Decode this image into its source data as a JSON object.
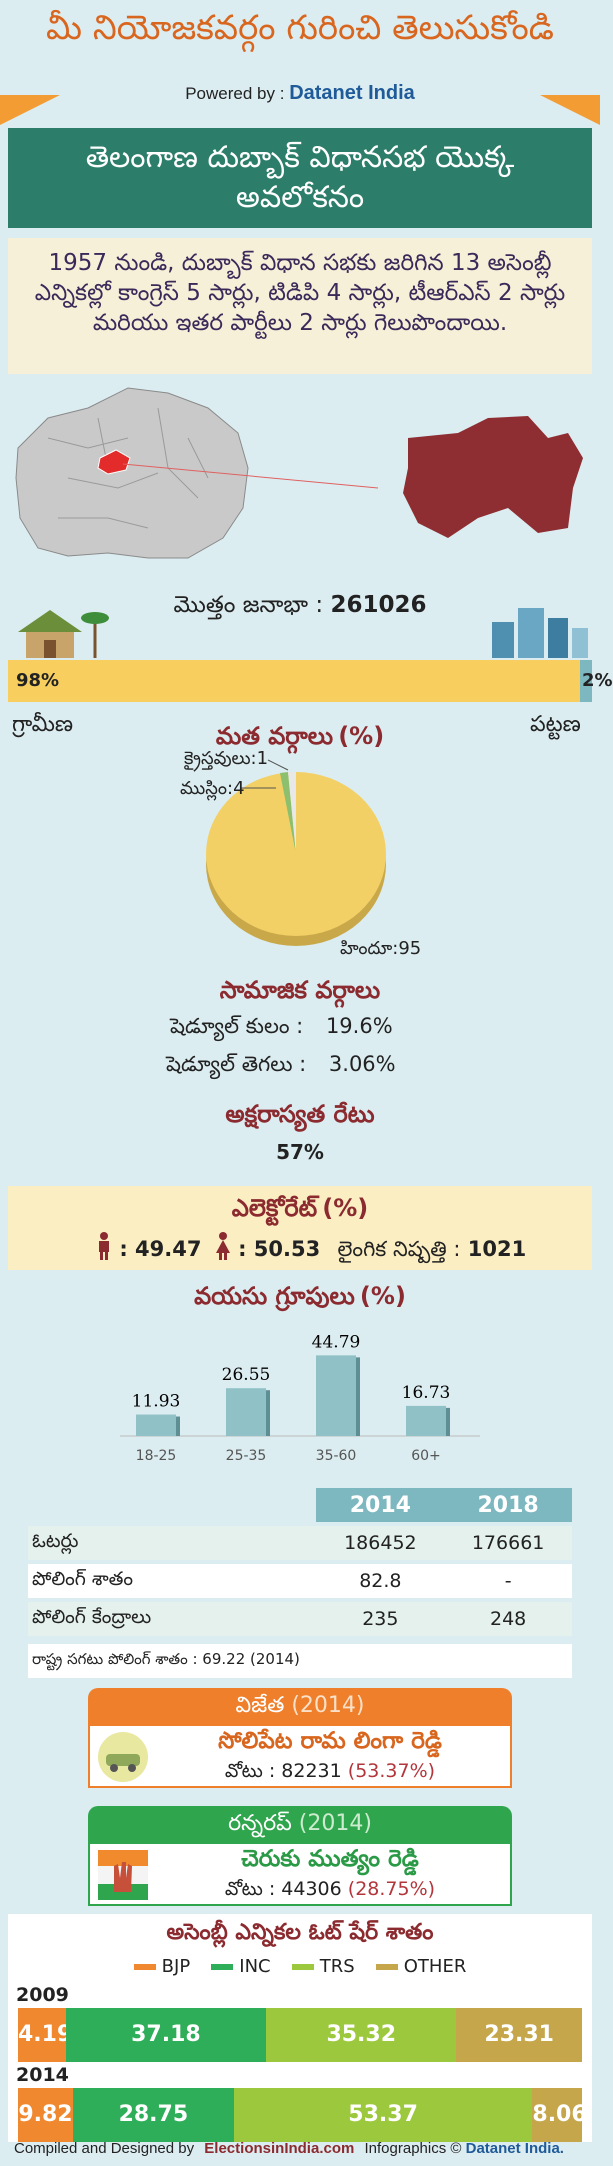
{
  "header": {
    "title": "మీ నియోజకవర్గం గురించి తెలుసుకోండి",
    "powered_label": "Powered by :",
    "powered_brand": "Datanet India"
  },
  "banner": {
    "title": "తెలంగాణ దుబ్బాక్ విధానసభ యొక్క అవలోకనం"
  },
  "summary": {
    "text": "1957 నుండి, దుబ్బాక్ విధాన సభకు జరిగిన 13 అసెంబ్లీ ఎన్నికల్లో కాంగ్రెస్ 5 సార్లు, టిడిపి 4 సార్లు, టీఆర్ఎస్ 2 సార్లు మరియు ఇతర పార్టీలు 2 సార్లు గెలుపొందాయి."
  },
  "population": {
    "label": "మొత్తం జనాభా :",
    "value": "261026",
    "rural_pct": "98%",
    "urban_pct": "2%",
    "rural_fraction": 0.98,
    "rural_label": "గ్రామీణ",
    "urban_label": "పట్టణ"
  },
  "religion": {
    "title": "మత వర్గాలు",
    "unit": "(%)",
    "labels": [
      "క్రైస్తవులు:1",
      "ముస్లిం:4",
      "హిందూ:95"
    ]
  },
  "social": {
    "title": "సామాజిక వర్గాలు",
    "sc_label": "షెడ్యూల్ కులం :",
    "sc_value": "19.6%",
    "st_label": "షెడ్యూల్ తెగలు :",
    "st_value": "3.06%"
  },
  "literacy": {
    "title": "అక్షరాస్యత రేటు",
    "value": "57%"
  },
  "electorate": {
    "title": "ఎలెక్టోరేట్",
    "unit": "(%)",
    "male": ": 49.47",
    "female": ": 50.53",
    "sex_ratio_label": "లైంగిక నిష్పత్తి :",
    "sex_ratio": "1021"
  },
  "age": {
    "title": "వయసు గ్రూపులు",
    "unit": "(%)"
  },
  "chart_data": {
    "type": "bar",
    "categories": [
      "18-25",
      "25-35",
      "35-60",
      "60+"
    ],
    "values": [
      11.93,
      26.55,
      44.79,
      16.73
    ],
    "title": "వయసు గ్రూపులు (%)",
    "value_labels": [
      "11.93",
      "26.55",
      "44.79",
      "16.73"
    ]
  },
  "table": {
    "headers": [
      "",
      "2014",
      "2018"
    ],
    "rows": [
      {
        "label": "ఓటర్లు",
        "v2014": "186452",
        "v2018": "176661"
      },
      {
        "label": "పోలింగ్ శాతం",
        "v2014": "82.8",
        "v2018": "-"
      },
      {
        "label": "పోలింగ్ కేంద్రాలు",
        "v2014": "235",
        "v2018": "248"
      }
    ],
    "note": "రాష్ట్ర సగటు పోలింగ్ శాతం : 69.22 (2014)"
  },
  "winner": {
    "title": "విజేత",
    "year": "(2014)",
    "name": "సోలిపేట రామ లింగా రెడ్డి",
    "votes_label": "వోటు : 82231",
    "votes_pct": "(53.37%)"
  },
  "runnerup": {
    "title": "రన్నరప్",
    "year": "(2014)",
    "name": "చెరుకు ముత్యం రెడ్డి",
    "votes_label": "వోటు : 44306",
    "votes_pct": "(28.75%)"
  },
  "vote_share": {
    "title": "అసెంబ్లీ ఎన్నికల ఓట్ షేర్ శాతం",
    "legend": [
      {
        "name": "BJP",
        "color": "#f0882f"
      },
      {
        "name": "INC",
        "color": "#2fae5a"
      },
      {
        "name": "TRS",
        "color": "#9cc83d"
      },
      {
        "name": "OTHER",
        "color": "#c6a64a"
      }
    ],
    "years": [
      {
        "year": "2009",
        "values": [
          4.19,
          37.18,
          35.32,
          23.31
        ],
        "labels": [
          "4.19",
          "37.18",
          "35.32",
          "23.31"
        ]
      },
      {
        "year": "2014",
        "values": [
          9.82,
          28.75,
          53.37,
          8.06
        ],
        "labels": [
          "9.82",
          "28.75",
          "53.37",
          "8.06"
        ]
      }
    ]
  },
  "footer": {
    "compiled": "Compiled and Designed by",
    "site": "ElectionsinIndia.com",
    "infographics": "Infographics ©",
    "brand": "Datanet India."
  }
}
